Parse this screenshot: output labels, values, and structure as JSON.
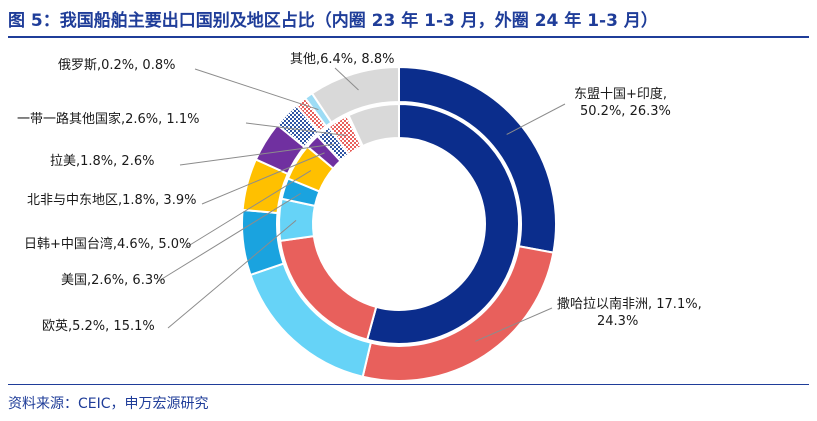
{
  "header": {
    "title": "图 5：我国船舶主要出口国别及地区占比（内圈 23 年 1-3 月，外圈 24 年 1-3 月）"
  },
  "footer": {
    "source": "资料来源：CEIC，申万宏源研究"
  },
  "colors": {
    "title": "#1f3d99",
    "rule": "#1f3d99"
  },
  "chart_data": {
    "type": "pie",
    "subtype": "double-ring donut",
    "title": "我国船舶主要出口国别及地区占比（内圈 23 年 1-3 月，外圈 24 年 1-3 月）",
    "rings": [
      "23 年 1-3 月",
      "24 年 1-3 月"
    ],
    "categories": [
      {
        "name": "东盟十国+印度",
        "inner": 50.2,
        "outer": 26.3,
        "label": "东盟十国+印度,\n50.2%, 26.3%",
        "color": "#0b2d8c",
        "pattern": "solid"
      },
      {
        "name": "撒哈拉以南非洲",
        "inner": 17.1,
        "outer": 24.3,
        "label": "撒哈拉以南非洲, 17.1%,\n24.3%",
        "color": "#e8605c",
        "pattern": "solid"
      },
      {
        "name": "欧英",
        "inner": 5.2,
        "outer": 15.1,
        "label": "欧英,5.2%, 15.1%",
        "color": "#66d3f7",
        "pattern": "solid"
      },
      {
        "name": "美国",
        "inner": 2.6,
        "outer": 6.3,
        "label": "美国,2.6%, 6.3%",
        "color": "#1aa3df",
        "pattern": "solid"
      },
      {
        "name": "日韩+中国台湾",
        "inner": 4.6,
        "outer": 5.0,
        "label": "日韩+中国台湾,4.6%, 5.0%",
        "color": "#ffc000",
        "pattern": "solid"
      },
      {
        "name": "北非与中东地区",
        "inner": 1.8,
        "outer": 3.9,
        "label": "北非与中东地区,1.8%, 3.9%",
        "color": "#7030a0",
        "pattern": "solid"
      },
      {
        "name": "拉美",
        "inner": 1.8,
        "outer": 2.6,
        "label": "拉美,1.8%, 2.6%",
        "color": "#2f55a4",
        "pattern": "checker"
      },
      {
        "name": "一带一路其他国家",
        "inner": 2.6,
        "outer": 1.1,
        "label": "一带一路其他国家,2.6%, 1.1%",
        "color": "#e8605c",
        "pattern": "checker"
      },
      {
        "name": "俄罗斯",
        "inner": 0.2,
        "outer": 0.8,
        "label": "俄罗斯,0.2%, 0.8%",
        "color": "#9ddcf5",
        "pattern": "solid"
      },
      {
        "name": "其他",
        "inner": 6.4,
        "outer": 8.8,
        "label": "其他,6.4%, 8.8%",
        "color": "#d9d9d9",
        "pattern": "solid"
      }
    ]
  }
}
